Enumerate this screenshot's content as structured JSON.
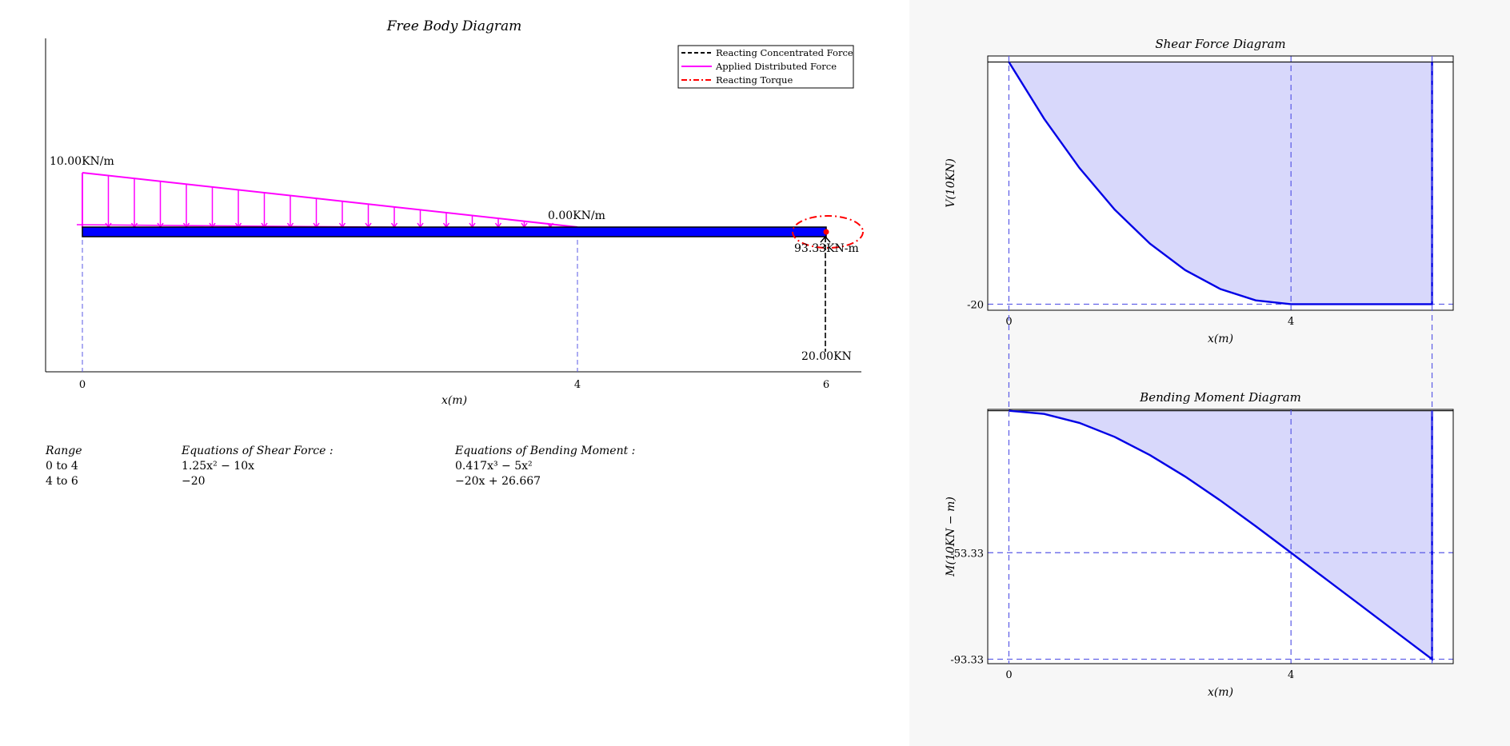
{
  "colors": {
    "beam": "#0000ff",
    "distributed_force": "#ff00ff",
    "reacting_force": "#000000",
    "reacting_torque": "#ff0000",
    "guide_lines": "#5a5ae6",
    "diagram_fill": "#d8d8fb",
    "diagram_line": "#0000e6",
    "right_panel_background": "#f7f7f7"
  },
  "free_body": {
    "title": "Free Body Diagram",
    "xlabel": "x(m)",
    "x_ticks": [
      "0",
      "4",
      "6"
    ],
    "load_start_label": "10.00KN/m",
    "load_end_label": "0.00KN/m",
    "torque_label": "93.33KN-m",
    "force_label": "20.00KN",
    "legend": [
      {
        "label": "Reacting Concentrated Force",
        "color": "#000000",
        "style": "dashed"
      },
      {
        "label": "Applied Distributed Force",
        "color": "#ff00ff",
        "style": "solid"
      },
      {
        "label": "Reacting Torque",
        "color": "#ff0000",
        "style": "dashdot"
      }
    ]
  },
  "equations": {
    "headers": [
      "Range",
      "Equations of Shear Force :",
      "Equations of Bending Moment :"
    ],
    "rows": [
      {
        "range": "0 to 4",
        "shear": "1.25x² − 10x",
        "moment": "0.417x³ − 5x²"
      },
      {
        "range": "4 to 6",
        "shear": "−20",
        "moment": "−20x + 26.667"
      }
    ]
  },
  "chart_data": [
    {
      "type": "area",
      "title": "Shear Force Diagram",
      "xlabel": "x(m)",
      "ylabel": "V(10KN)",
      "x_ticks": [
        "0",
        "4"
      ],
      "y_ticks": [
        "-20"
      ],
      "xlim": [
        -0.3,
        6.3
      ],
      "ylim": [
        -20.5,
        0.5
      ],
      "series": [
        {
          "x": [
            0,
            0.5,
            1,
            1.5,
            2,
            2.5,
            3,
            3.5,
            4,
            4.5,
            5,
            5.5,
            6,
            6
          ],
          "values": [
            0,
            -4.6875,
            -8.75,
            -12.1875,
            -15,
            -17.1875,
            -18.75,
            -19.6875,
            -20,
            -20,
            -20,
            -20,
            -20,
            0
          ]
        }
      ]
    },
    {
      "type": "area",
      "title": "Bending Moment Diagram",
      "xlabel": "x(m)",
      "ylabel": "M(10KN − m)",
      "x_ticks": [
        "0",
        "4"
      ],
      "y_ticks": [
        "-53.33",
        "-93.33"
      ],
      "xlim": [
        -0.3,
        6.3
      ],
      "ylim": [
        -95,
        0.5
      ],
      "series": [
        {
          "x": [
            0,
            0.5,
            1,
            1.5,
            2,
            2.5,
            3,
            3.5,
            4,
            4.5,
            5,
            5.5,
            6,
            6
          ],
          "values": [
            0,
            -1.198,
            -4.583,
            -9.844,
            -16.667,
            -24.74,
            -33.75,
            -43.385,
            -53.333,
            -63.333,
            -73.333,
            -83.333,
            -93.333,
            0
          ]
        }
      ]
    }
  ]
}
